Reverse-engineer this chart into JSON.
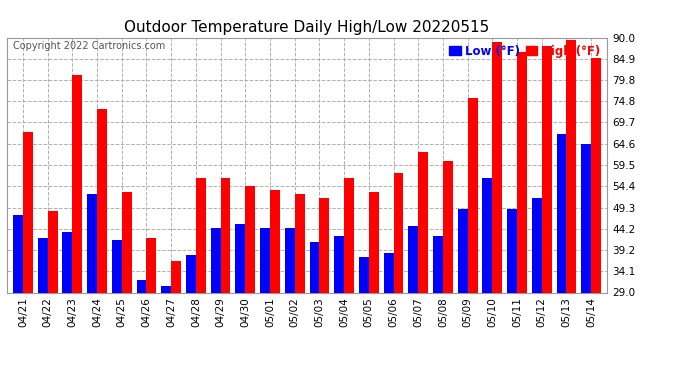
{
  "title": "Outdoor Temperature Daily High/Low 20220515",
  "copyright": "Copyright 2022 Cartronics.com",
  "legend_low": "Low",
  "legend_high": "High",
  "legend_unit": "(°F)",
  "categories": [
    "04/21",
    "04/22",
    "04/23",
    "04/24",
    "04/25",
    "04/26",
    "04/27",
    "04/28",
    "04/29",
    "04/30",
    "05/01",
    "05/02",
    "05/03",
    "05/04",
    "05/05",
    "05/06",
    "05/07",
    "05/08",
    "05/09",
    "05/10",
    "05/11",
    "05/12",
    "05/13",
    "05/14"
  ],
  "high": [
    67.5,
    48.5,
    81.0,
    73.0,
    53.0,
    42.0,
    36.5,
    56.5,
    56.5,
    54.5,
    53.5,
    52.5,
    51.5,
    56.5,
    53.0,
    57.5,
    62.5,
    60.5,
    75.5,
    89.0,
    86.5,
    88.0,
    89.5,
    85.0
  ],
  "low": [
    47.5,
    42.0,
    43.5,
    52.5,
    41.5,
    32.0,
    30.5,
    38.0,
    44.5,
    45.5,
    44.5,
    44.5,
    41.0,
    42.5,
    37.5,
    38.5,
    45.0,
    42.5,
    49.0,
    56.5,
    49.0,
    51.5,
    67.0,
    64.5
  ],
  "ylim_min": 29.0,
  "ylim_max": 90.0,
  "yticks": [
    29.0,
    34.1,
    39.2,
    44.2,
    49.3,
    54.4,
    59.5,
    64.6,
    69.7,
    74.8,
    79.8,
    84.9,
    90.0
  ],
  "bar_color_high": "#ff0000",
  "bar_color_low": "#0000ff",
  "background_color": "#ffffff",
  "grid_color": "#b0b0b0",
  "title_fontsize": 11,
  "copyright_fontsize": 7,
  "legend_fontsize": 8.5,
  "tick_fontsize": 7.5,
  "bar_width": 0.4
}
